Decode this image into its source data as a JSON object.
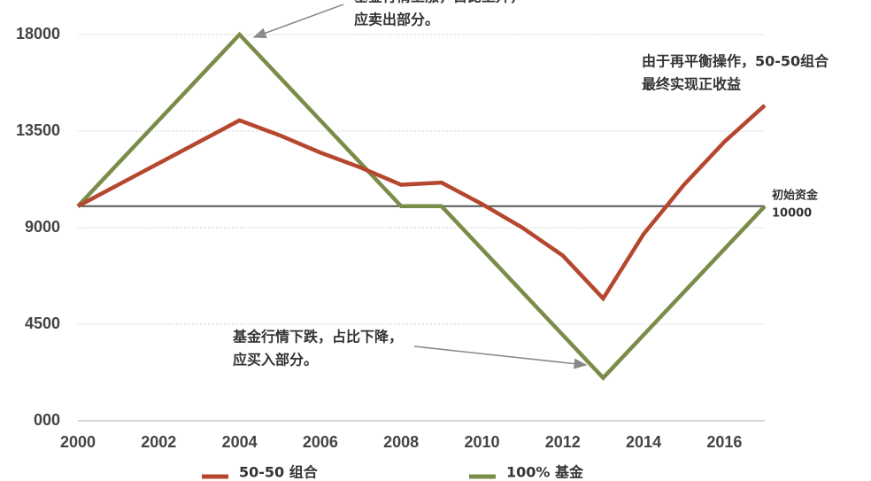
{
  "chart_data": {
    "type": "line",
    "x": [
      2000,
      2001,
      2002,
      2003,
      2004,
      2005,
      2006,
      2007,
      2008,
      2009,
      2010,
      2011,
      2012,
      2013,
      2014,
      2015,
      2016,
      2017
    ],
    "series": [
      {
        "name": "50-50 组合",
        "color": "#b5472f",
        "values": [
          10000,
          11000,
          12000,
          13000,
          14000,
          13300,
          12500,
          11800,
          11000,
          11100,
          10100,
          9000,
          7700,
          5700,
          8700,
          11000,
          13000,
          14700
        ]
      },
      {
        "name": "100% 基金",
        "color": "#7a8c4a",
        "values": [
          10000,
          12000,
          14000,
          16000,
          18000,
          16000,
          14000,
          12000,
          10000,
          10000,
          8000,
          6000,
          4000,
          2000,
          4000,
          6000,
          8000,
          10000
        ]
      }
    ],
    "xlim": [
      2000,
      2017
    ],
    "xticks": [
      2000,
      2002,
      2004,
      2006,
      2008,
      2010,
      2012,
      2014,
      2016
    ],
    "ylim": [
      0,
      18000
    ],
    "yticks": [
      {
        "value": 0,
        "label": "000"
      },
      4500,
      9000,
      13500,
      18000
    ],
    "grid": true,
    "baseline": {
      "label": "初始资金",
      "value": 10000
    },
    "annotations": [
      {
        "lines": [
          "基金行情上涨，占比上升，",
          "应卖出部分。"
        ]
      },
      {
        "lines": [
          "由于再平衡操作，50-50组合",
          "最终实现正收益"
        ]
      },
      {
        "lines": [
          "基金行情下跌，占比下降，",
          "应买入部分。"
        ]
      }
    ]
  }
}
